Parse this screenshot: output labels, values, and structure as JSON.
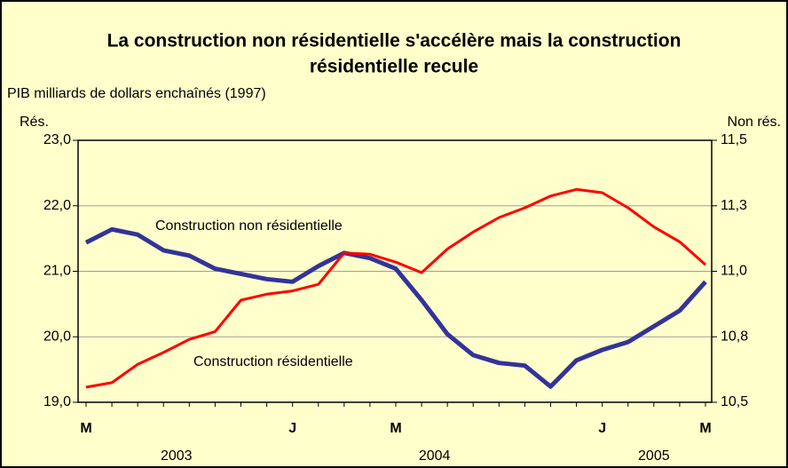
{
  "chart_data": {
    "type": "line",
    "title": [
      "La construction non résidentielle s'accélère mais la construction",
      "résidentielle recule"
    ],
    "subtitle": "PIB milliards de dollars enchaînés (1997)",
    "y_label": "Rés.",
    "y2_label": "Non rés.",
    "categories": [
      "M",
      null,
      null,
      null,
      null,
      null,
      null,
      null,
      "J",
      null,
      null,
      null,
      "M",
      null,
      null,
      null,
      null,
      null,
      null,
      null,
      "J",
      null,
      null,
      null,
      "M"
    ],
    "year_labels": [
      "2003",
      "2004",
      "2005"
    ],
    "ylim": [
      19,
      23
    ],
    "yticks": [
      {
        "value": 19,
        "label": "19,0"
      },
      {
        "value": 20,
        "label": "20,0"
      },
      {
        "value": 21,
        "label": "21,0"
      },
      {
        "value": 22,
        "label": "22,0"
      },
      {
        "value": 23,
        "label": "23,0"
      }
    ],
    "y2lim": [
      10.5,
      11.5
    ],
    "y2ticks": [
      {
        "value": 10.5,
        "label": "10,5"
      },
      {
        "value": 10.75,
        "label": "10,8"
      },
      {
        "value": 11,
        "label": "11,0"
      },
      {
        "value": 11.25,
        "label": "11,3"
      },
      {
        "value": 11.5,
        "label": "11,5"
      }
    ],
    "grid": true,
    "series": [
      {
        "name": "Construction non résidentielle",
        "color": "#333399",
        "axis": "y2",
        "values": [
          11.11,
          11.16,
          11.14,
          11.08,
          11.06,
          11.01,
          10.99,
          10.97,
          10.96,
          11.02,
          11.07,
          11.05,
          11.01,
          10.89,
          10.76,
          10.68,
          10.65,
          10.64,
          10.56,
          10.66,
          10.7,
          10.73,
          10.79,
          10.85,
          10.96
        ]
      },
      {
        "name": "Construction résidentielle",
        "color": "#ff0000",
        "axis": "y",
        "values": [
          19.23,
          19.3,
          19.58,
          19.76,
          19.96,
          20.08,
          20.56,
          20.65,
          20.7,
          20.8,
          21.28,
          21.26,
          21.14,
          20.98,
          21.34,
          21.6,
          21.82,
          21.97,
          22.15,
          22.25,
          22.2,
          21.97,
          21.68,
          21.45,
          21.1
        ]
      }
    ]
  }
}
